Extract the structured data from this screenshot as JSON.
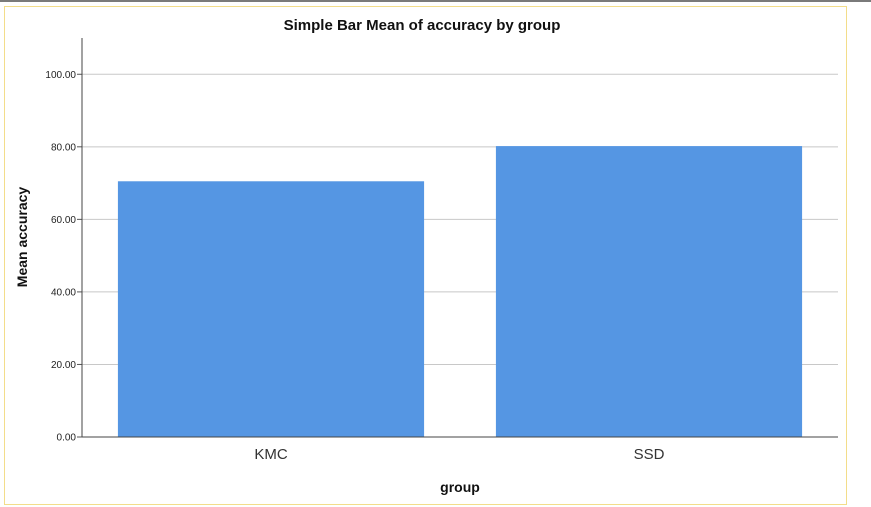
{
  "chart_data": {
    "type": "bar",
    "title": "Simple Bar Mean of accuracy by group",
    "xlabel": "group",
    "ylabel": "Mean accuracy",
    "categories": [
      "KMC",
      "SSD"
    ],
    "values": [
      70.5,
      80.2
    ],
    "ylim": [
      0,
      110
    ],
    "yticks": [
      "0.00",
      "20.00",
      "40.00",
      "60.00",
      "80.00",
      "100.00"
    ],
    "ytick_values": [
      0,
      20,
      40,
      60,
      80,
      100
    ],
    "grid": true,
    "bar_color": "#5596e3",
    "grid_color": "#c8c8c8",
    "frame_color": "#f3dd8a"
  }
}
